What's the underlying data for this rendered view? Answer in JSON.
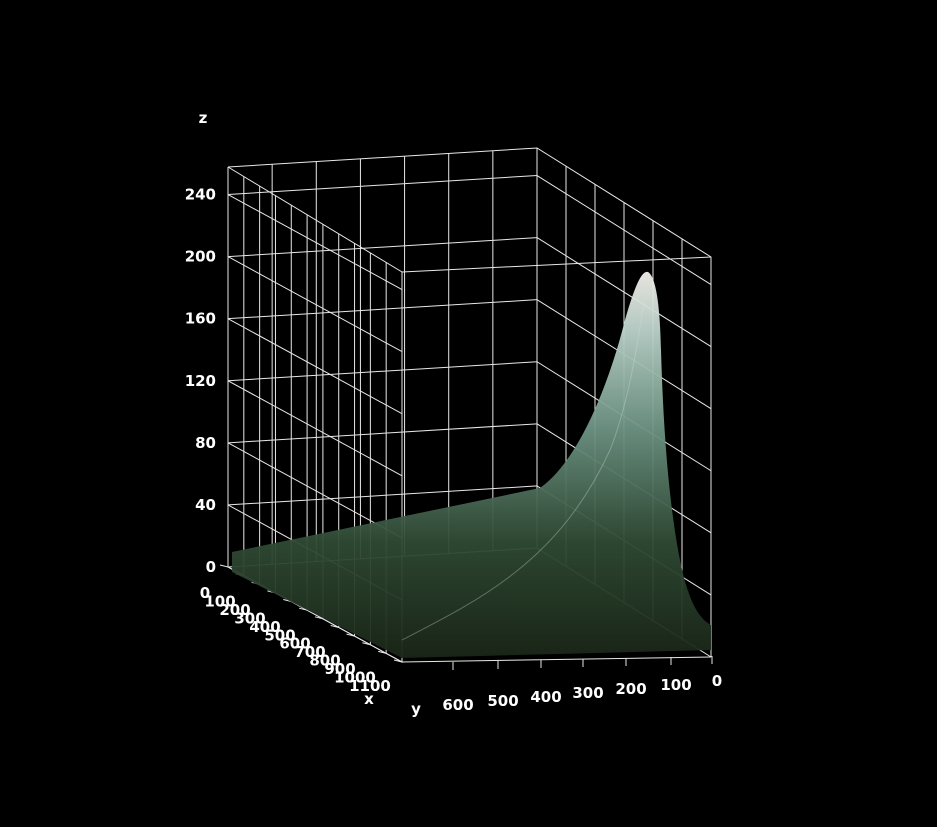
{
  "chart_data": {
    "type": "surface",
    "title": "",
    "xlabel": "x",
    "ylabel": "y",
    "zlabel": "z",
    "x_ticks": [
      "0",
      "100",
      "200",
      "300",
      "400",
      "500",
      "600",
      "700",
      "800",
      "900",
      "1000",
      "1100"
    ],
    "y_ticks": [
      "600",
      "500",
      "400",
      "300",
      "200",
      "100",
      "0"
    ],
    "z_ticks": [
      "0",
      "40",
      "80",
      "120",
      "160",
      "200",
      "240"
    ],
    "xlim": [
      0,
      1100
    ],
    "ylim": [
      0,
      700
    ],
    "zlim": [
      0,
      250
    ],
    "peak": {
      "x": 0,
      "y": 0,
      "z": 200
    },
    "surface_colors": [
      "#1a2618",
      "#2f4a34",
      "#6f9585",
      "#bcd3cb",
      "#f4f0ea"
    ],
    "background": "#000000",
    "grid": true
  }
}
